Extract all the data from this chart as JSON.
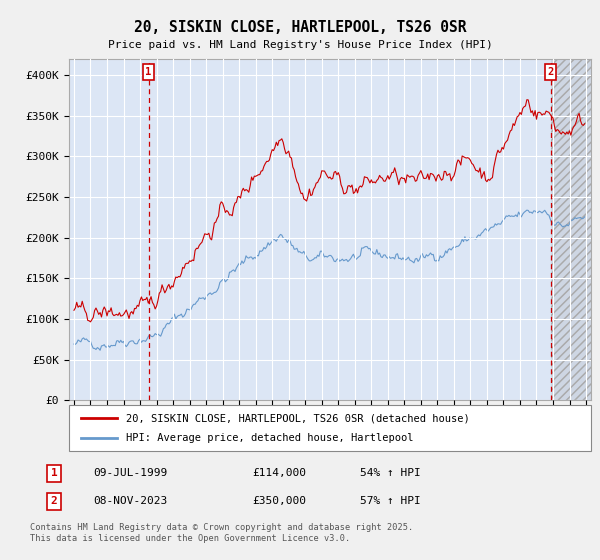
{
  "title": "20, SISKIN CLOSE, HARTLEPOOL, TS26 0SR",
  "subtitle": "Price paid vs. HM Land Registry's House Price Index (HPI)",
  "red_label": "20, SISKIN CLOSE, HARTLEPOOL, TS26 0SR (detached house)",
  "blue_label": "HPI: Average price, detached house, Hartlepool",
  "footer": "Contains HM Land Registry data © Crown copyright and database right 2025.\nThis data is licensed under the Open Government Licence v3.0.",
  "annotation1": {
    "num": "1",
    "date": "09-JUL-1999",
    "price": "£114,000",
    "pct": "54% ↑ HPI"
  },
  "annotation2": {
    "num": "2",
    "date": "08-NOV-2023",
    "price": "£350,000",
    "pct": "57% ↑ HPI"
  },
  "ylim": [
    0,
    420000
  ],
  "yticks": [
    0,
    50000,
    100000,
    150000,
    200000,
    250000,
    300000,
    350000,
    400000
  ],
  "ytick_labels": [
    "£0",
    "£50K",
    "£100K",
    "£150K",
    "£200K",
    "£250K",
    "£300K",
    "£350K",
    "£400K"
  ],
  "red_color": "#cc0000",
  "blue_color": "#6699cc",
  "bg_color": "#f0f0f0",
  "plot_bg": "#dce6f5",
  "grid_color": "#ffffff",
  "marker1_x": 1999.52,
  "marker2_x": 2023.85,
  "xlim_left": 1994.7,
  "xlim_right": 2026.3
}
